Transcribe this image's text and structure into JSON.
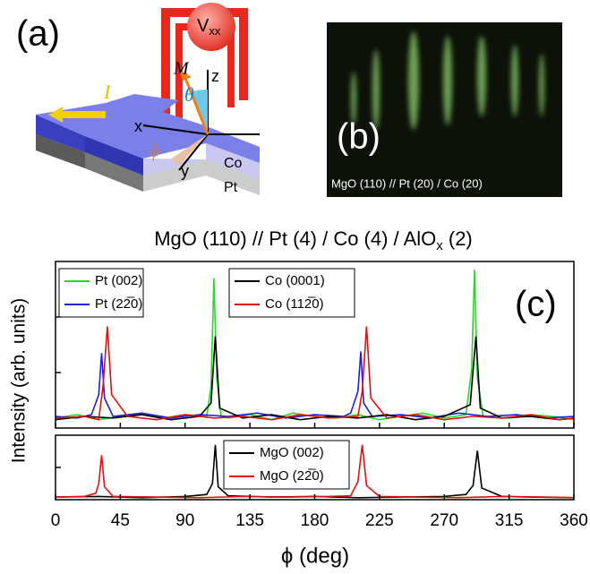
{
  "panel_a": {
    "label": "(a)",
    "v": "V",
    "v_sub": "xx",
    "m": "M",
    "theta": "θ",
    "z": "z",
    "i": "I",
    "x": "x",
    "phi": "ϕ",
    "y": "y",
    "co": "Co",
    "pt": "Pt"
  },
  "panel_b": {
    "label": "(b)",
    "caption": "MgO (110) // Pt (20) / Co (20)"
  },
  "chart_data": [
    {
      "type": "line",
      "title": {
        "main": "MgO (110) // Pt (4) / Co (4) / AlO",
        "sub": "x",
        "end": " (2)"
      },
      "panel_label": "(c)",
      "ylabel": "Intensity (arb. units)",
      "xlim": [
        0,
        360
      ],
      "xticks": [
        0,
        45,
        90,
        135,
        180,
        225,
        270,
        315,
        360
      ],
      "ylim": [
        0,
        1
      ],
      "yticks": [
        0.333,
        0.667
      ],
      "series": [
        {
          "name": "Pt (002)",
          "color": "#22dd22",
          "x": [
            0,
            15,
            30,
            45,
            60,
            75,
            90,
            105,
            108,
            110,
            112,
            115,
            120,
            135,
            150,
            165,
            180,
            195,
            210,
            225,
            240,
            255,
            270,
            285,
            289,
            291,
            293,
            297,
            315,
            330,
            345,
            360
          ],
          "values": [
            0.06,
            0.08,
            0.05,
            0.07,
            0.09,
            0.06,
            0.08,
            0.07,
            0.25,
            0.9,
            0.3,
            0.07,
            0.06,
            0.08,
            0.05,
            0.09,
            0.07,
            0.06,
            0.08,
            0.05,
            0.07,
            0.09,
            0.06,
            0.08,
            0.35,
            0.95,
            0.3,
            0.07,
            0.06,
            0.08,
            0.07,
            0.05
          ]
        },
        {
          "name": "Pt (22̅0)",
          "color": "#1f1fdd",
          "x": [
            0,
            15,
            25,
            30,
            32,
            34,
            40,
            60,
            80,
            100,
            120,
            140,
            160,
            180,
            200,
            205,
            210,
            212,
            214,
            220,
            240,
            260,
            280,
            300,
            320,
            340,
            360
          ],
          "values": [
            0.07,
            0.06,
            0.08,
            0.2,
            0.45,
            0.18,
            0.07,
            0.09,
            0.06,
            0.08,
            0.07,
            0.09,
            0.06,
            0.08,
            0.07,
            0.09,
            0.22,
            0.46,
            0.15,
            0.07,
            0.08,
            0.06,
            0.09,
            0.07,
            0.08,
            0.06,
            0.07
          ]
        },
        {
          "name": "Co (0001)",
          "color": "#000000",
          "x": [
            0,
            20,
            40,
            60,
            80,
            100,
            108,
            111,
            114,
            130,
            150,
            170,
            190,
            210,
            230,
            250,
            270,
            288,
            292,
            295,
            310,
            330,
            350,
            360
          ],
          "values": [
            0.05,
            0.07,
            0.06,
            0.08,
            0.05,
            0.07,
            0.15,
            0.55,
            0.12,
            0.06,
            0.08,
            0.05,
            0.07,
            0.06,
            0.08,
            0.05,
            0.07,
            0.14,
            0.55,
            0.12,
            0.06,
            0.07,
            0.05,
            0.06
          ]
        },
        {
          "name": "Co (112̅0)",
          "color": "#e01010",
          "x": [
            0,
            20,
            30,
            33,
            36,
            39,
            50,
            70,
            90,
            110,
            130,
            150,
            170,
            190,
            210,
            213,
            216,
            219,
            230,
            250,
            270,
            290,
            310,
            330,
            350,
            360
          ],
          "values": [
            0.06,
            0.07,
            0.05,
            0.25,
            0.61,
            0.2,
            0.07,
            0.05,
            0.08,
            0.06,
            0.07,
            0.05,
            0.08,
            0.06,
            0.07,
            0.22,
            0.61,
            0.18,
            0.06,
            0.08,
            0.05,
            0.07,
            0.06,
            0.08,
            0.05,
            0.06
          ]
        }
      ]
    },
    {
      "type": "line",
      "xlabel": "ϕ (deg)",
      "xlim": [
        0,
        360
      ],
      "xticks": [
        0,
        45,
        90,
        135,
        180,
        225,
        270,
        315,
        360
      ],
      "ylim": [
        0,
        1
      ],
      "yticks": [
        0.5
      ],
      "series": [
        {
          "name": "MgO (002)",
          "color": "#000000",
          "x": [
            0,
            30,
            60,
            90,
            105,
            109,
            111,
            113,
            120,
            150,
            180,
            210,
            240,
            270,
            285,
            290,
            293,
            296,
            310,
            330,
            360
          ],
          "values": [
            0.04,
            0.05,
            0.03,
            0.05,
            0.08,
            0.25,
            0.85,
            0.2,
            0.06,
            0.04,
            0.05,
            0.03,
            0.04,
            0.05,
            0.08,
            0.22,
            0.76,
            0.18,
            0.05,
            0.04,
            0.03
          ]
        },
        {
          "name": "MgO (22̅0)",
          "color": "#e01010",
          "x": [
            0,
            20,
            28,
            30,
            32,
            34,
            40,
            70,
            100,
            130,
            160,
            190,
            205,
            210,
            213,
            216,
            225,
            250,
            280,
            310,
            340,
            360
          ],
          "values": [
            0.04,
            0.05,
            0.1,
            0.25,
            0.69,
            0.2,
            0.05,
            0.04,
            0.03,
            0.05,
            0.04,
            0.05,
            0.06,
            0.28,
            0.85,
            0.22,
            0.05,
            0.04,
            0.03,
            0.05,
            0.04,
            0.03
          ]
        }
      ]
    }
  ]
}
